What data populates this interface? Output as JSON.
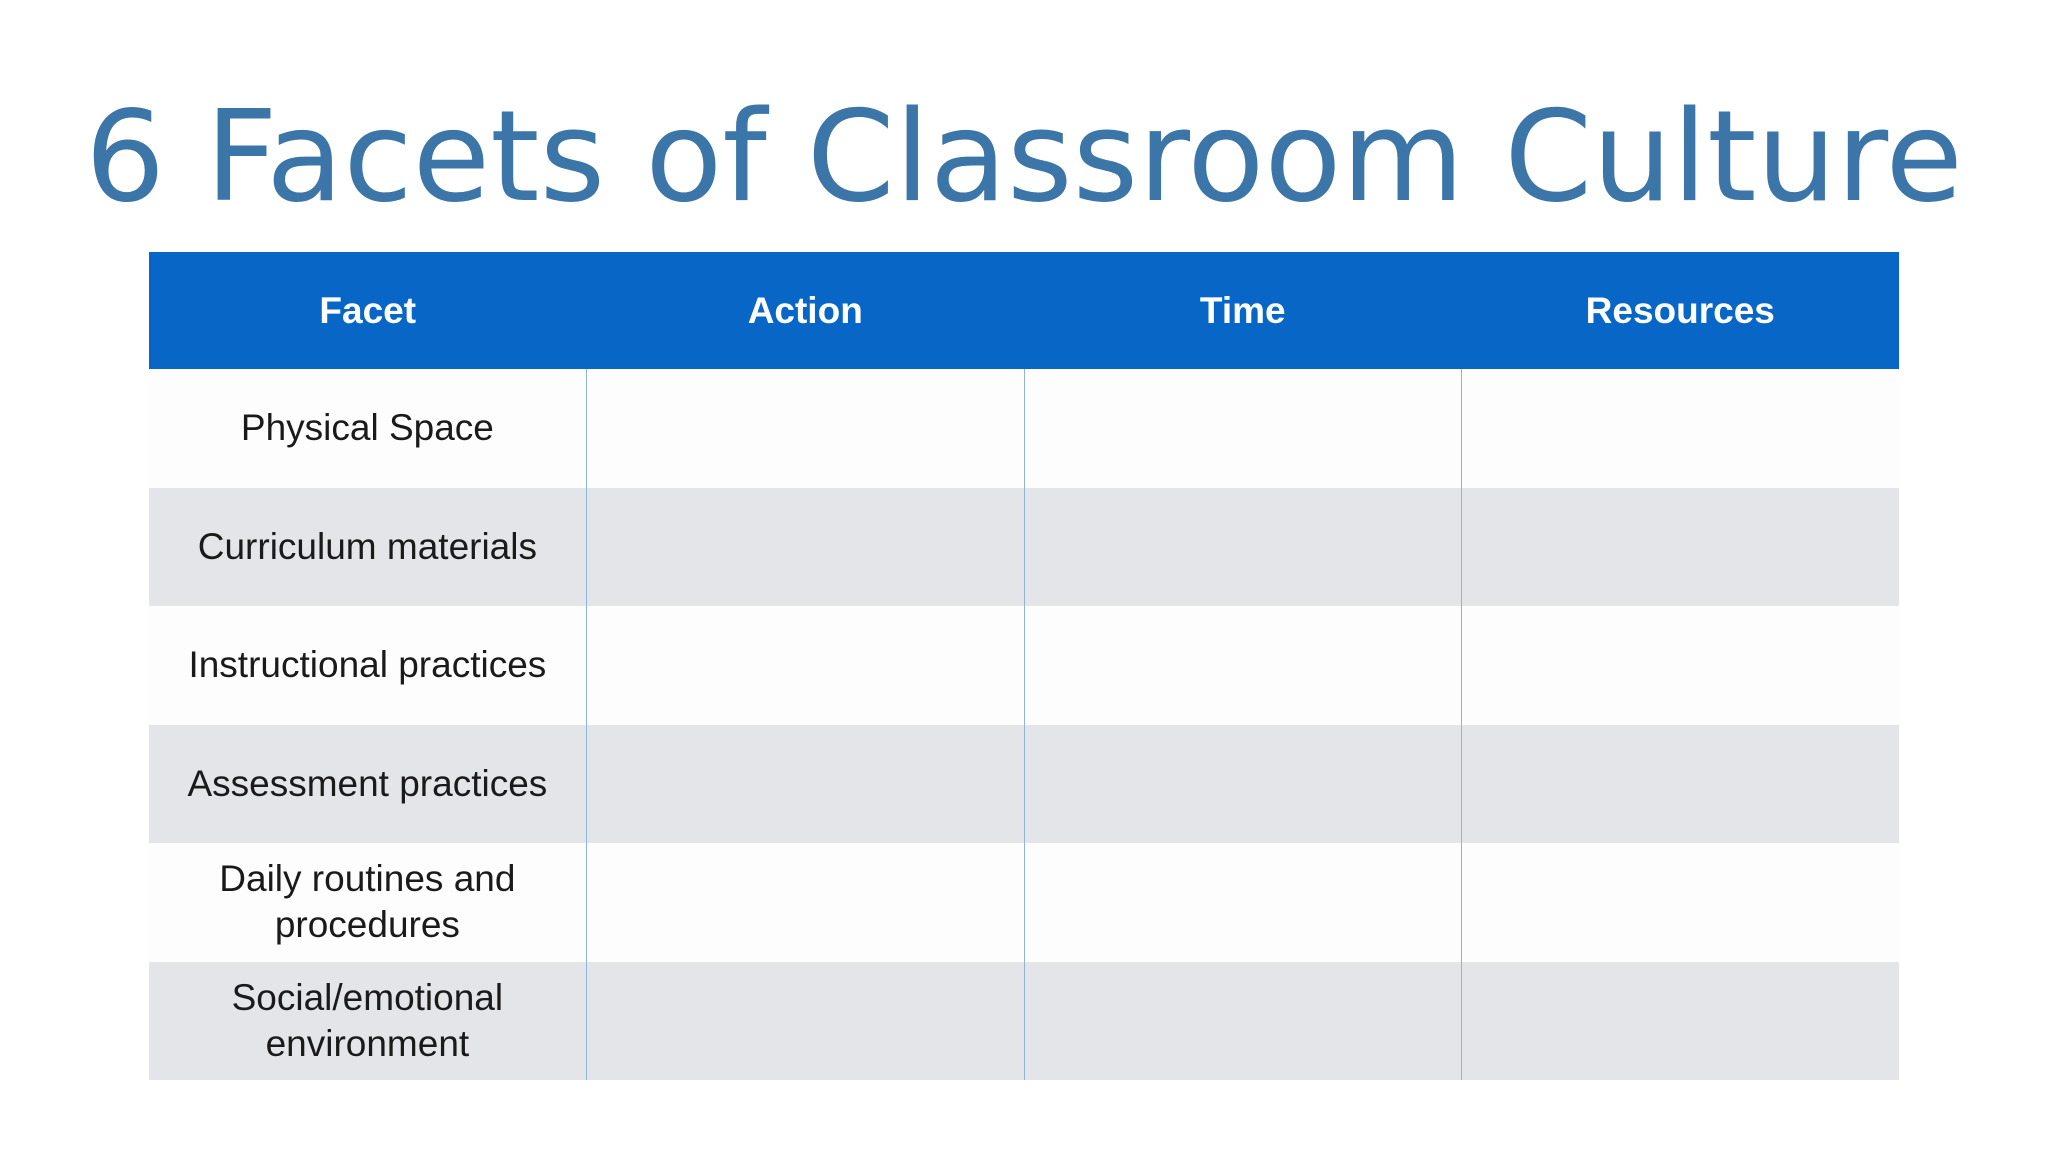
{
  "title": "6 Facets of Classroom Culture",
  "colors": {
    "title": "#3c76a8",
    "header_background": "#0866c6",
    "header_text": "#ffffff",
    "row_alt_background": "#e4e5e8",
    "column_divider": "#8fb5dc"
  },
  "table": {
    "headers": [
      "Facet",
      "Action",
      "Time",
      "Resources"
    ],
    "rows": [
      {
        "facet": "Physical Space",
        "action": "",
        "time": "",
        "resources": ""
      },
      {
        "facet": "Curriculum materials",
        "action": "",
        "time": "",
        "resources": ""
      },
      {
        "facet": "Instructional practices",
        "action": "",
        "time": "",
        "resources": ""
      },
      {
        "facet": "Assessment practices",
        "action": "",
        "time": "",
        "resources": ""
      },
      {
        "facet": "Daily routines and procedures",
        "action": "",
        "time": "",
        "resources": ""
      },
      {
        "facet": "Social/emotional environment",
        "action": "",
        "time": "",
        "resources": ""
      }
    ]
  }
}
